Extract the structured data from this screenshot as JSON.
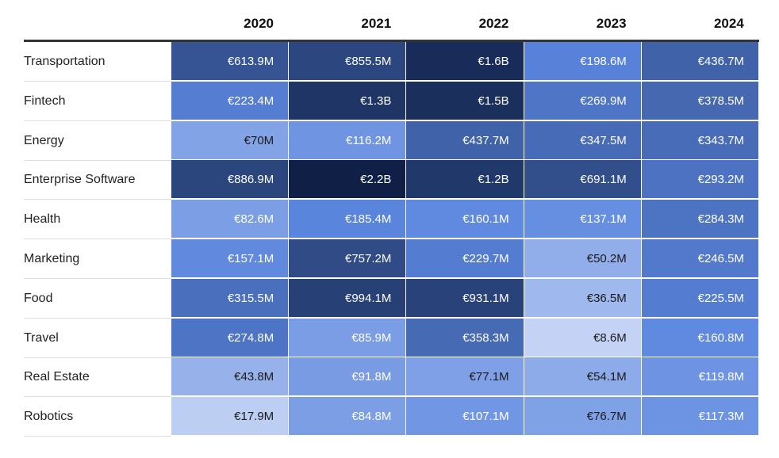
{
  "chart_data": {
    "type": "heatmap",
    "title": "",
    "columns": [
      "2020",
      "2021",
      "2022",
      "2023",
      "2024"
    ],
    "rows": [
      {
        "label": "Transportation",
        "values": [
          613.9,
          855.5,
          1600,
          198.6,
          436.7
        ],
        "display": [
          "€613.9M",
          "€855.5M",
          "€1.6B",
          "€198.6M",
          "€436.7M"
        ]
      },
      {
        "label": "Fintech",
        "values": [
          223.4,
          1300,
          1500,
          269.9,
          378.5
        ],
        "display": [
          "€223.4M",
          "€1.3B",
          "€1.5B",
          "€269.9M",
          "€378.5M"
        ]
      },
      {
        "label": "Energy",
        "values": [
          70,
          116.2,
          437.7,
          347.5,
          343.7
        ],
        "display": [
          "€70M",
          "€116.2M",
          "€437.7M",
          "€347.5M",
          "€343.7M"
        ]
      },
      {
        "label": "Enterprise Software",
        "values": [
          886.9,
          2200,
          1200,
          691.1,
          293.2
        ],
        "display": [
          "€886.9M",
          "€2.2B",
          "€1.2B",
          "€691.1M",
          "€293.2M"
        ]
      },
      {
        "label": "Health",
        "values": [
          82.6,
          185.4,
          160.1,
          137.1,
          284.3
        ],
        "display": [
          "€82.6M",
          "€185.4M",
          "€160.1M",
          "€137.1M",
          "€284.3M"
        ]
      },
      {
        "label": "Marketing",
        "values": [
          157.1,
          757.2,
          229.7,
          50.2,
          246.5
        ],
        "display": [
          "€157.1M",
          "€757.2M",
          "€229.7M",
          "€50.2M",
          "€246.5M"
        ]
      },
      {
        "label": "Food",
        "values": [
          315.5,
          994.1,
          931.1,
          36.5,
          225.5
        ],
        "display": [
          "€315.5M",
          "€994.1M",
          "€931.1M",
          "€36.5M",
          "€225.5M"
        ]
      },
      {
        "label": "Travel",
        "values": [
          274.8,
          85.9,
          358.3,
          8.6,
          160.8
        ],
        "display": [
          "€274.8M",
          "€85.9M",
          "€358.3M",
          "€8.6M",
          "€160.8M"
        ]
      },
      {
        "label": "Real Estate",
        "values": [
          43.8,
          91.8,
          77.1,
          54.1,
          119.8
        ],
        "display": [
          "€43.8M",
          "€91.8M",
          "€77.1M",
          "€54.1M",
          "€119.8M"
        ]
      },
      {
        "label": "Robotics",
        "values": [
          17.9,
          84.8,
          107.1,
          76.7,
          117.3
        ],
        "display": [
          "€17.9M",
          "€84.8M",
          "€107.1M",
          "€76.7M",
          "€117.3M"
        ]
      }
    ],
    "unit": "€M",
    "colors": {
      "low": "#c4d3f5",
      "mid": "#5b86de",
      "high": "#0f1f45",
      "text_dark": "#1a1a1a",
      "text_light": "#ffffff"
    }
  }
}
